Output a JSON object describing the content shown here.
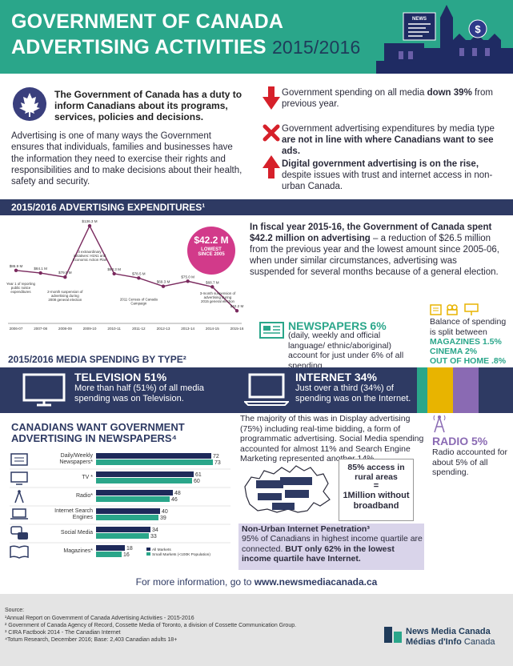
{
  "header": {
    "title_line1": "GOVERNMENT OF CANADA",
    "title_line2": "ADVERTISING ACTIVITIES",
    "year": "2015/2016",
    "sign_text": "NEWS"
  },
  "intro": {
    "bold_text": "The Government of Canada has a duty to inform Canadians about its programs, services, policies and decisions.",
    "body_text": "Advertising is one of many ways the Government ensures that individuals, families and businesses have the information they need to exercise their rights and responsibilities and to make decisions about their health, safety and security."
  },
  "facts": [
    {
      "icon": "arrow-down-icon",
      "pre": "Government spending on all media ",
      "bold": "down 39%",
      "post": " from previous year."
    },
    {
      "icon": "x-mark-icon",
      "pre": "Government advertising expenditures by media type ",
      "bold": "are not in line with where Canadians want to see ads.",
      "post": ""
    },
    {
      "icon": "arrow-up-icon",
      "pre": "",
      "bold": "Digital government advertising is on the rise,",
      "post": " despite issues with trust and internet access in non-urban Canada."
    }
  ],
  "expenditures": {
    "heading": "2015/2016 ADVERTISING EXPENDITURES¹",
    "badge_value": "$42.2 M",
    "badge_line1": "LOWEST",
    "badge_line2": "SINCE 2005",
    "text_bold": "In fiscal year 2015-16, the Government of Canada spent $42.2 million on advertising",
    "text_body": " – a reduction of $26.5 million from the previous year and the lowest amount since 2005-06, when under similar circumstances, advertising was suspended for several months because of a general election."
  },
  "chart_data": {
    "type": "line",
    "x": [
      "2006-07",
      "2007-08",
      "2008-09",
      "2009-10",
      "2010-11",
      "2011-12",
      "2012-13",
      "2013-14",
      "2014-15",
      "2015-16"
    ],
    "point_labels": [
      "$86.9 M",
      "$84.1 M",
      "$79.5 M",
      "$136.3 M",
      "$83.3 M",
      "$78.5 M",
      "$69.3 M",
      "$75.0 M",
      "$68.7 M",
      "$42.2 M"
    ],
    "values": [
      86.9,
      84.1,
      79.5,
      136.3,
      83.3,
      78.5,
      69.3,
      75.0,
      68.7,
      42.2
    ],
    "ylim": [
      30,
      140
    ],
    "annotations": [
      {
        "text": "Year 1 of reporting public notice expenditures",
        "x_index": 0
      },
      {
        "text": "2-month suspension of advertising during 2008 general election",
        "x_index": 2
      },
      {
        "text": "3 extraordinary initiatives: H1N1 and Economic Action Plan",
        "x_index": 3
      },
      {
        "text": "2011 Census of Canada Campaign",
        "x_index": 5
      },
      {
        "text": "3-month suspension of advertising during 2015 general election",
        "x_index": 9
      }
    ]
  },
  "media_type": {
    "heading": "2015/2016 MEDIA SPENDING BY TYPE²",
    "newspapers_title": "NEWSPAPERS 6%",
    "newspapers_text": "(daily, weekly and official language/ ethnic/aboriginal) account for just under 6% of all spending.",
    "balance_text": "Balance of spending is split between",
    "magazines": "MAGAZINES 1.5%",
    "cinema": "CINEMA 2%",
    "out_of_home": "OUT OF HOME .8%",
    "television_title": "TELEVISION 51%",
    "television_text": "More than half (51%) of all media spending was on Television.",
    "internet_title": "INTERNET 34%",
    "internet_text": "Just over a third (34%) of spending was on the Internet.",
    "radio_title": "RADIO 5%",
    "radio_text": "Radio accounted for about 5% of all spending.",
    "internet_detail": "The majority of this was in Display advertising (75%) including real-time bidding, a form of programmatic advertising.  Social Media spending accounted for almost 11% and Search Engine Marketing represented another 14%.",
    "rural_line1": "85% access in rural areas",
    "rural_eq": "=",
    "rural_line2": "1Million without broadband",
    "nonurban_title": "Non-Urban Internet Penetration³",
    "nonurban_pre": "95% of Canadians in highest income quartile are connected. ",
    "nonurban_bold": "BUT only 62% in the lowest income quartile have Internet."
  },
  "want": {
    "heading_line1": "CANADIANS WANT GOVERNMENT",
    "heading_line2": "ADVERTISING IN NEWSPAPERS⁴",
    "legend_all": "All Markets",
    "legend_small": "Small Markets (<100K Population)",
    "colors": {
      "all": "#1e2a5a",
      "small": "#2aa68a"
    }
  },
  "want_chart": {
    "type": "bar",
    "categories": [
      "Daily/Weekly Newspapers*",
      "TV *",
      "Radio*",
      "Internet Search Engines",
      "Social Media",
      "Magazines*"
    ],
    "icons": [
      "newspaper-icon",
      "tv-icon",
      "radio-tower-icon",
      "laptop-icon",
      "chat-bubbles-icon",
      "magazine-icon"
    ],
    "series": [
      {
        "name": "All Markets",
        "values": [
          72,
          61,
          48,
          40,
          34,
          18
        ]
      },
      {
        "name": "Small Markets (<100K Population)",
        "values": [
          73,
          60,
          46,
          39,
          33,
          16
        ]
      }
    ],
    "xlim": [
      0,
      80
    ]
  },
  "footer": {
    "more_prefix": "For more information, go to ",
    "more_url": "www.newsmediacanada.ca",
    "source_title": "Source:",
    "sources": [
      "¹Annual Report on Government of Canada Advertising Activities - 2015-2016",
      "² Government of Canada Agency of Record, Cossette Media of Toronto, a division of Cossette Communication Group.",
      "³ CIRA Factbook 2014 - The Canadian Internet",
      "⁴Totum Research, December 2016; Base: 2,403 Canadian adults 18+"
    ],
    "logo_line1": "News Media Canada",
    "logo_line2_bold": "Médias d'Info",
    "logo_line2": " Canada"
  }
}
